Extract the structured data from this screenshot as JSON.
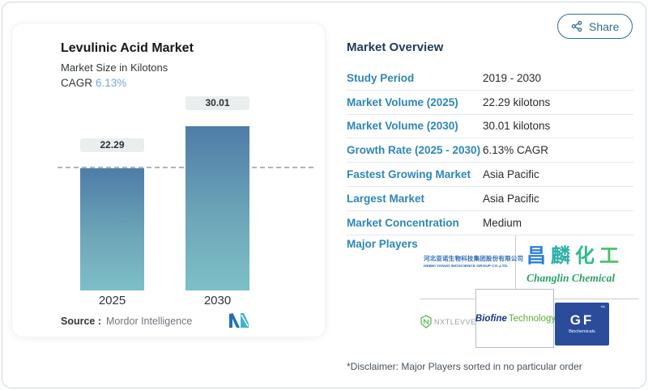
{
  "share": {
    "label": "Share"
  },
  "chart_card": {
    "title": "Levulinic Acid Market",
    "subtitle": "Market Size in Kilotons",
    "cagr_label": "CAGR",
    "cagr_value": "6.13%",
    "source_label": "Source :",
    "source_value": "Mordor Intelligence"
  },
  "chart_data": {
    "type": "bar",
    "title": "Levulinic Acid Market",
    "subtitle": "Market Size in Kilotons",
    "unit": "kilotons",
    "categories": [
      "2025",
      "2030"
    ],
    "values": [
      22.29,
      30.01
    ],
    "data_labels": [
      "22.29",
      "30.01"
    ],
    "reference_line": 22.29,
    "ylim": [
      0,
      30.01
    ],
    "grid": false,
    "legend": "none",
    "bar_gradient_top": "#4e7ca7",
    "bar_gradient_bottom": "#7dbfc7"
  },
  "overview": {
    "heading": "Market Overview",
    "rows": [
      {
        "label": "Study Period",
        "value": "2019 - 2030"
      },
      {
        "label": "Market Volume (2025)",
        "value": "22.29 kilotons"
      },
      {
        "label": "Market Volume (2030)",
        "value": "30.01 kilotons"
      },
      {
        "label": "Growth Rate (2025 - 2030)",
        "value": "6.13% CAGR"
      },
      {
        "label": "Fastest Growing Market",
        "value": "Asia Pacific"
      },
      {
        "label": "Largest Market",
        "value": "Asia Pacific"
      },
      {
        "label": "Market Concentration",
        "value": "Medium"
      }
    ]
  },
  "major_players": {
    "heading": "Major Players",
    "logos": [
      {
        "name": "Hebei Yanuo Bioscience Group",
        "cn": "河北亚诺生物科技集团股份有限公司",
        "en": "HEBEI YANUO BIOSCIENCE GROUP CO.,LTD."
      },
      {
        "name": "Changlin Chemical",
        "cn_chars": [
          "昌",
          "麟",
          "化",
          "工"
        ],
        "en": "Changlin Chemical"
      },
      {
        "name": "NXTLEVVEL",
        "text": "NXTLEVVEL"
      },
      {
        "name": "Biofine Technology",
        "part1": "Biofine",
        "part2": "Technology"
      },
      {
        "name": "GF Biochemicals",
        "part1": "GF",
        "part2": "Biochemicals",
        "tm": "™"
      }
    ],
    "disclaimer": "*Disclaimer: Major Players sorted in no particular order"
  },
  "colors": {
    "accent_blue_label": "#2d86b7",
    "heading_navy": "#1c3c5a",
    "cagr_light_blue": "#74aad8",
    "share_teal": "#2e6f8e",
    "bar_top": "#4e7ca7",
    "bar_bottom": "#7dbfc7",
    "pill_bg": "#e9eeef",
    "gf_blue": "#2b4b9b",
    "biofine_navy": "#16357d",
    "biofine_green": "#5ab033",
    "changlin_green": "#2aa066"
  }
}
